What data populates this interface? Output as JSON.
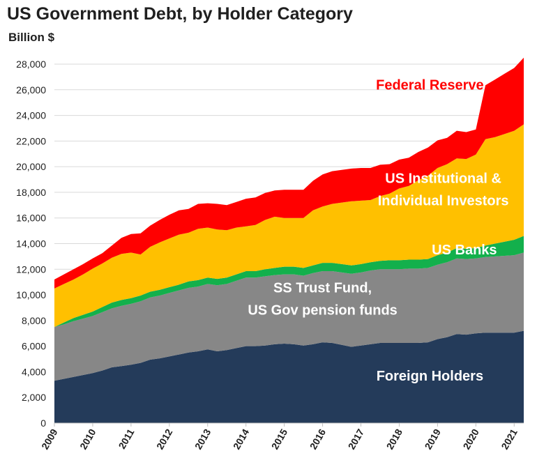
{
  "chart_data": {
    "type": "area",
    "stacked": true,
    "title": "US Government Debt, by Holder Category",
    "ylabel": "Billion $",
    "xlabel": "",
    "ylim": [
      0,
      28000
    ],
    "yticks": [
      0,
      2000,
      4000,
      6000,
      8000,
      10000,
      12000,
      14000,
      16000,
      18000,
      20000,
      22000,
      24000,
      26000,
      28000
    ],
    "ytick_labels": [
      "0",
      "2,000",
      "4,000",
      "6,000",
      "8,000",
      "10,000",
      "12,000",
      "14,000",
      "16,000",
      "18,000",
      "20,000",
      "22,000",
      "24,000",
      "26,000",
      "28,000"
    ],
    "xticks": [
      "2009",
      "2010",
      "2011",
      "2012",
      "2013",
      "2014",
      "2015",
      "2016",
      "2017",
      "2018",
      "2019",
      "2020",
      "2021"
    ],
    "grid": "horizontal",
    "x": [
      2009.0,
      2009.25,
      2009.5,
      2009.75,
      2010.0,
      2010.25,
      2010.5,
      2010.75,
      2011.0,
      2011.25,
      2011.5,
      2011.75,
      2012.0,
      2012.25,
      2012.5,
      2012.75,
      2013.0,
      2013.25,
      2013.5,
      2013.75,
      2014.0,
      2014.25,
      2014.5,
      2014.75,
      2015.0,
      2015.25,
      2015.5,
      2015.75,
      2016.0,
      2016.25,
      2016.5,
      2016.75,
      2017.0,
      2017.25,
      2017.5,
      2017.75,
      2018.0,
      2018.25,
      2018.5,
      2018.75,
      2019.0,
      2019.25,
      2019.5,
      2019.75,
      2020.0,
      2020.25,
      2020.5,
      2020.75,
      2021.0,
      2021.25
    ],
    "series": [
      {
        "name": "Foreign Holders",
        "color": "#243b5a",
        "label_color": "#ffffff",
        "values": [
          3300,
          3450,
          3600,
          3750,
          3900,
          4100,
          4350,
          4450,
          4550,
          4700,
          4950,
          5050,
          5200,
          5350,
          5500,
          5600,
          5750,
          5600,
          5700,
          5850,
          6000,
          6000,
          6050,
          6150,
          6200,
          6150,
          6050,
          6150,
          6300,
          6250,
          6100,
          5950,
          6050,
          6150,
          6250,
          6250,
          6250,
          6250,
          6250,
          6300,
          6550,
          6700,
          6950,
          6900,
          7000,
          7050,
          7050,
          7050,
          7050,
          7200
        ]
      },
      {
        "name": "SS Trust Fund, US Gov pension funds",
        "color": "#878787",
        "label_color": "#ffffff",
        "values": [
          4200,
          4250,
          4350,
          4400,
          4450,
          4550,
          4600,
          4700,
          4750,
          4800,
          4850,
          4900,
          4950,
          5000,
          5050,
          5050,
          5100,
          5150,
          5150,
          5250,
          5350,
          5350,
          5400,
          5400,
          5400,
          5450,
          5450,
          5550,
          5550,
          5600,
          5650,
          5700,
          5700,
          5750,
          5750,
          5750,
          5750,
          5800,
          5800,
          5800,
          5800,
          5850,
          5900,
          5900,
          5850,
          5900,
          5950,
          6000,
          6050,
          6100
        ]
      },
      {
        "name": "US Banks",
        "color": "#13b04c",
        "label_color": "#ffffff",
        "values": [
          0,
          150,
          250,
          300,
          350,
          400,
          450,
          450,
          450,
          450,
          450,
          450,
          450,
          450,
          500,
          500,
          500,
          500,
          500,
          500,
          500,
          500,
          550,
          550,
          600,
          600,
          600,
          600,
          650,
          650,
          650,
          650,
          650,
          650,
          650,
          700,
          700,
          700,
          700,
          700,
          750,
          750,
          800,
          800,
          800,
          900,
          1000,
          1100,
          1200,
          1300
        ]
      },
      {
        "name": "US Institutional & Individual Investors",
        "color": "#ffc000",
        "label_color": "#ffffff",
        "values": [
          3000,
          3000,
          3000,
          3150,
          3350,
          3400,
          3500,
          3600,
          3550,
          3200,
          3500,
          3700,
          3800,
          3900,
          3800,
          4000,
          3900,
          3850,
          3700,
          3650,
          3500,
          3600,
          3850,
          4000,
          3800,
          3800,
          3900,
          4300,
          4400,
          4600,
          4800,
          5000,
          4950,
          4850,
          5050,
          5200,
          5600,
          5750,
          6200,
          6500,
          6800,
          6900,
          7000,
          7000,
          7300,
          8300,
          8300,
          8400,
          8500,
          8700
        ]
      },
      {
        "name": "Federal Reserve",
        "color": "#ff0000",
        "label_color": "#ff0000",
        "values": [
          700,
          750,
          800,
          800,
          800,
          800,
          950,
          1250,
          1450,
          1650,
          1650,
          1750,
          1850,
          1900,
          1850,
          1950,
          1900,
          2000,
          1950,
          2000,
          2150,
          2150,
          2100,
          2050,
          2200,
          2200,
          2200,
          2300,
          2500,
          2550,
          2550,
          2550,
          2550,
          2500,
          2450,
          2300,
          2250,
          2200,
          2200,
          2200,
          2150,
          2050,
          2150,
          2100,
          1950,
          4200,
          4500,
          4700,
          4900,
          5200
        ]
      }
    ],
    "annotations": [
      {
        "series": "Foreign Holders",
        "lines": [
          "Foreign Holders"
        ]
      },
      {
        "series": "SS Trust Fund, US Gov pension funds",
        "lines": [
          "SS Trust Fund,",
          "US Gov pension funds"
        ]
      },
      {
        "series": "US Banks",
        "lines": [
          "US Banks"
        ]
      },
      {
        "series": "US Institutional & Individual Investors",
        "lines": [
          "US Institutional &",
          "Individual Investors"
        ]
      },
      {
        "series": "Federal Reserve",
        "lines": [
          "Federal Reserve"
        ]
      }
    ]
  }
}
